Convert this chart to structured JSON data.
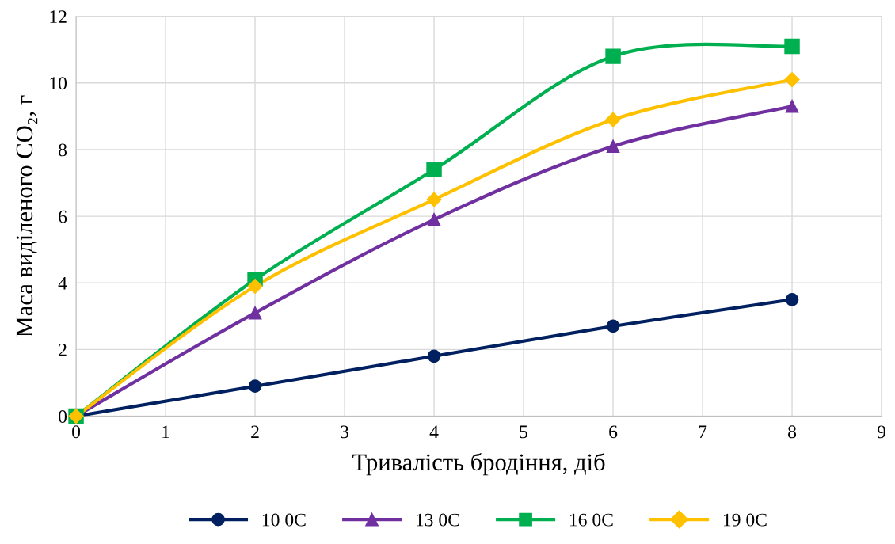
{
  "chart_data": {
    "type": "line",
    "xlabel": "Тривалість бродіння, діб",
    "ylabel": "Маса виділеного CO₂, г",
    "x": [
      0,
      2,
      4,
      6,
      8
    ],
    "series": [
      {
        "name": "10 0C",
        "color": "#002060",
        "marker": "circle",
        "values": [
          0,
          0.9,
          1.8,
          2.7,
          3.5
        ]
      },
      {
        "name": "13 0C",
        "color": "#7030a0",
        "marker": "triangle",
        "values": [
          0,
          3.1,
          5.9,
          8.1,
          9.3
        ]
      },
      {
        "name": "16 0C",
        "color": "#00b050",
        "marker": "square",
        "values": [
          0,
          4.1,
          7.4,
          10.8,
          11.1
        ]
      },
      {
        "name": "19 0C",
        "color": "#ffc000",
        "marker": "diamond",
        "values": [
          0,
          3.9,
          6.5,
          8.9,
          10.1
        ]
      }
    ],
    "xlim": [
      0,
      9
    ],
    "xticks": [
      0,
      1,
      2,
      3,
      4,
      5,
      6,
      7,
      8,
      9
    ],
    "ylim": [
      0,
      12
    ],
    "yticks": [
      0,
      2,
      4,
      6,
      8,
      10,
      12
    ],
    "grid": true,
    "legend": "bottom",
    "line_style": "solid"
  }
}
